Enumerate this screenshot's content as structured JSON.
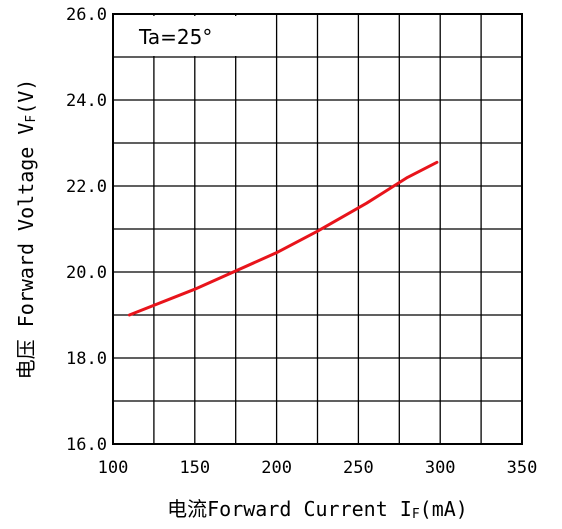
{
  "chart_data": {
    "type": "line",
    "title": "",
    "annotation": "Ta=25°",
    "xlabel": "电流Forward Current I",
    "xlabel_sub": "F",
    "xlabel_unit": "(mA)",
    "ylabel": "电压 Forward Voltage V",
    "ylabel_sub": "F",
    "ylabel_unit": "(V)",
    "xlim": [
      100,
      350
    ],
    "ylim": [
      16.0,
      26.0
    ],
    "x_ticks": [
      "100",
      "150",
      "200",
      "250",
      "300",
      "350"
    ],
    "y_ticks": [
      "16.0",
      "18.0",
      "20.0",
      "22.0",
      "24.0",
      "26.0"
    ],
    "grid": true,
    "series": [
      {
        "color": "#e8141b",
        "x": [
          110,
          150,
          200,
          225,
          255,
          280,
          298
        ],
        "y": [
          19.0,
          19.6,
          20.45,
          20.95,
          21.6,
          22.2,
          22.55
        ]
      }
    ]
  }
}
